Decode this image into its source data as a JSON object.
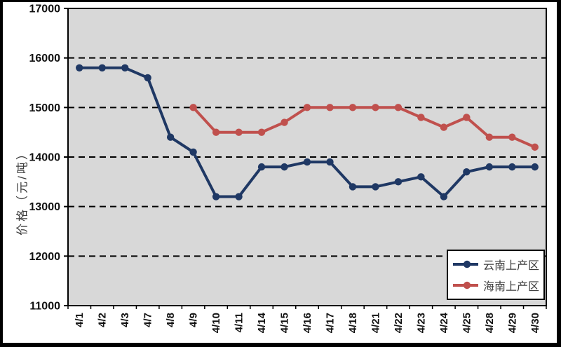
{
  "figure": {
    "bg": "#ffffff",
    "plot_bg": "#d8d8d8",
    "frame_color": "#000000",
    "gridline_color": "#000000"
  },
  "chart_data": {
    "type": "line",
    "title": "",
    "xlabel": "",
    "ylabel": "价格（元/吨）",
    "ylim": [
      11000,
      17000
    ],
    "ytick_interval": 1000,
    "yticks": [
      17000,
      16000,
      15000,
      14000,
      13000,
      12000,
      11000
    ],
    "grid": "horizontal dashed black lines on gray plot background",
    "legend_position": "bottom-right inside plot",
    "categories": [
      "4/1",
      "4/2",
      "4/3",
      "4/7",
      "4/8",
      "4/9",
      "4/10",
      "4/11",
      "4/14",
      "4/15",
      "4/16",
      "4/17",
      "4/18",
      "4/21",
      "4/22",
      "4/23",
      "4/24",
      "4/25",
      "4/28",
      "4/29",
      "4/30"
    ],
    "series": [
      {
        "name": "云南上产区",
        "color": "#1f3864",
        "marker": "circle",
        "values": [
          15800,
          15800,
          15800,
          15600,
          14400,
          14100,
          13200,
          13200,
          13800,
          13800,
          13900,
          13900,
          13400,
          13400,
          13500,
          13600,
          13200,
          13700,
          13800,
          13800,
          13800
        ]
      },
      {
        "name": "海南上产区",
        "color": "#c0504d",
        "marker": "circle",
        "values": [
          null,
          null,
          null,
          null,
          null,
          15000,
          14500,
          14500,
          14500,
          14700,
          15000,
          15000,
          15000,
          15000,
          15000,
          14800,
          14600,
          14800,
          14400,
          14400,
          14200
        ]
      }
    ]
  }
}
